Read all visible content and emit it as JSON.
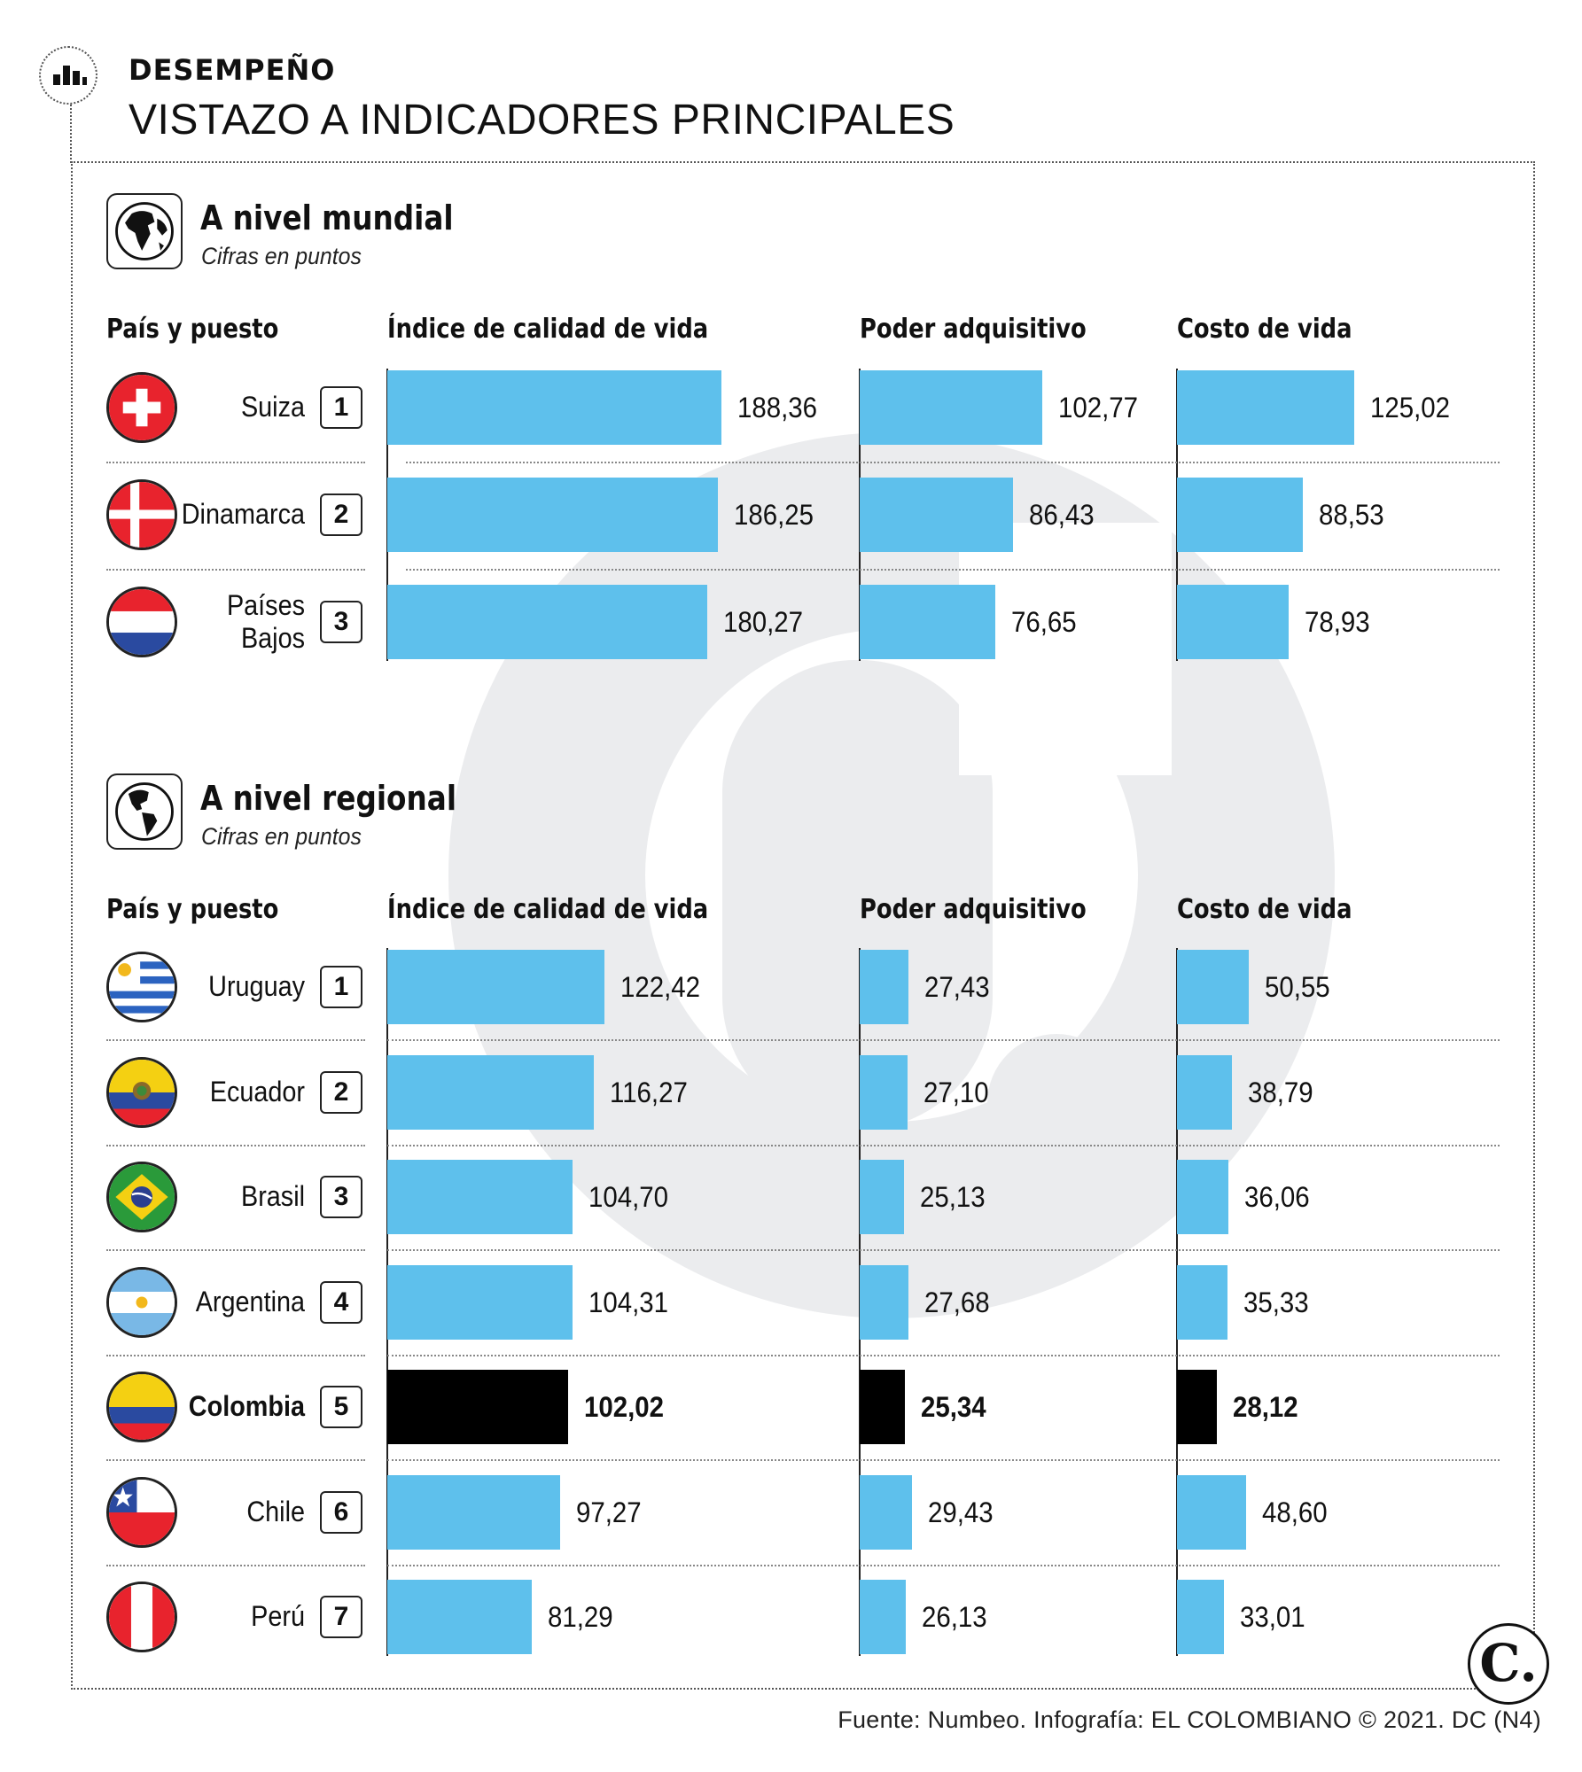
{
  "header": {
    "kicker": "DESEMPEÑO",
    "headline": "VISTAZO A INDICADORES PRINCIPALES",
    "icon": "bar-chart-icon"
  },
  "chart_data": [
    {
      "type": "bar",
      "title": "A nivel mundial",
      "subtitle": "Cifras en puntos",
      "icon": "globe-europe-africa-icon",
      "row_header": "País y puesto",
      "metrics": [
        "Índice de calidad de vida",
        "Poder adquisitivo",
        "Costo de vida"
      ],
      "rows": [
        {
          "country": "Suiza",
          "rank": "1",
          "flag": "switzerland",
          "highlight": false,
          "values": [
            188.36,
            102.77,
            125.02
          ],
          "labels": [
            "188,36",
            "102,77",
            "125,02"
          ]
        },
        {
          "country": "Dinamarca",
          "rank": "2",
          "flag": "denmark",
          "highlight": false,
          "values": [
            186.25,
            86.43,
            88.53
          ],
          "labels": [
            "186,25",
            "86,43",
            "88,53"
          ]
        },
        {
          "country": "Países Bajos",
          "rank": "3",
          "flag": "netherlands",
          "highlight": false,
          "values": [
            180.27,
            76.65,
            78.93
          ],
          "labels": [
            "180,27",
            "76,65",
            "78,93"
          ]
        }
      ]
    },
    {
      "type": "bar",
      "title": "A nivel regional",
      "subtitle": "Cifras en puntos",
      "icon": "globe-americas-icon",
      "row_header": "País y puesto",
      "metrics": [
        "Índice de calidad de vida",
        "Poder adquisitivo",
        "Costo de vida"
      ],
      "rows": [
        {
          "country": "Uruguay",
          "rank": "1",
          "flag": "uruguay",
          "highlight": false,
          "values": [
            122.42,
            27.43,
            50.55
          ],
          "labels": [
            "122,42",
            "27,43",
            "50,55"
          ]
        },
        {
          "country": "Ecuador",
          "rank": "2",
          "flag": "ecuador",
          "highlight": false,
          "values": [
            116.27,
            27.1,
            38.79
          ],
          "labels": [
            "116,27",
            "27,10",
            "38,79"
          ]
        },
        {
          "country": "Brasil",
          "rank": "3",
          "flag": "brazil",
          "highlight": false,
          "values": [
            104.7,
            25.13,
            36.06
          ],
          "labels": [
            "104,70",
            "25,13",
            "36,06"
          ]
        },
        {
          "country": "Argentina",
          "rank": "4",
          "flag": "argentina",
          "highlight": false,
          "values": [
            104.31,
            27.68,
            35.33
          ],
          "labels": [
            "104,31",
            "27,68",
            "35,33"
          ]
        },
        {
          "country": "Colombia",
          "rank": "5",
          "flag": "colombia",
          "highlight": true,
          "values": [
            102.02,
            25.34,
            28.12
          ],
          "labels": [
            "102,02",
            "25,34",
            "28,12"
          ]
        },
        {
          "country": "Chile",
          "rank": "6",
          "flag": "chile",
          "highlight": false,
          "values": [
            97.27,
            29.43,
            48.6
          ],
          "labels": [
            "97,27",
            "29,43",
            "48,60"
          ]
        },
        {
          "country": "Perú",
          "rank": "7",
          "flag": "peru",
          "highlight": false,
          "values": [
            81.29,
            26.13,
            33.01
          ],
          "labels": [
            "81,29",
            "26,13",
            "33,01"
          ]
        }
      ]
    }
  ],
  "colors": {
    "bar": "#5ec0ec",
    "highlight": "#000000",
    "watermark": "#ebecee"
  },
  "footer": {
    "source": "Fuente: Numbeo. Infografía: EL COLOMBIANO © 2021. DC (N4)"
  },
  "brand": {
    "mark": "C."
  }
}
